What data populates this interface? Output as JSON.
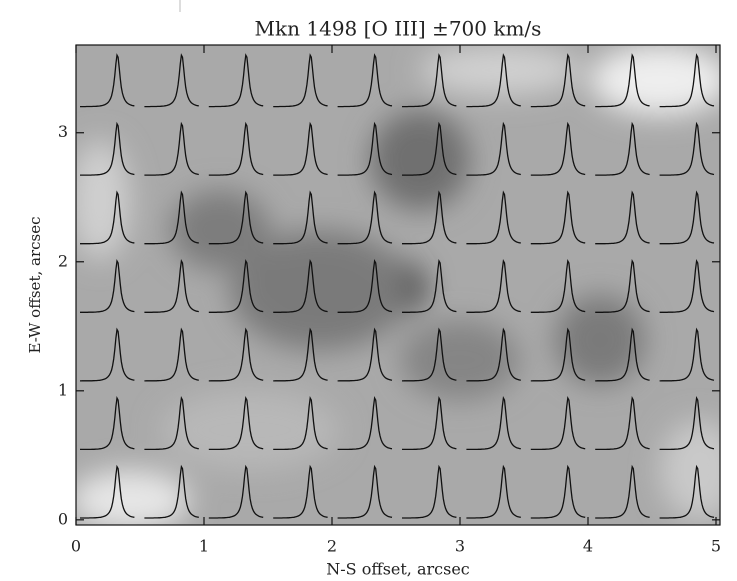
{
  "chart_data": {
    "type": "image",
    "title": "Mkn 1498 [O III] ±700 km/s",
    "xlabel": "N-S offset, arcsec",
    "ylabel": "E-W offset, arcsec",
    "xlim": [
      0,
      5
    ],
    "ylim": [
      -0.04,
      3.68
    ],
    "xticks": [
      0,
      1,
      2,
      3,
      4,
      5
    ],
    "yticks": [
      0,
      1,
      2,
      3
    ]
  }
}
